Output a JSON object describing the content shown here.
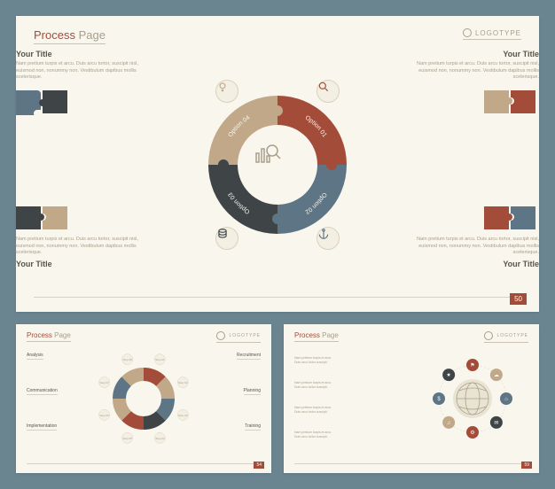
{
  "colors": {
    "bg": "#6b8590",
    "slide_bg": "#f9f6ee",
    "accent_red": "#a44c3a",
    "accent_blue": "#5d7585",
    "accent_dark": "#3f4447",
    "accent_tan": "#c0a888",
    "muted_text": "#a89f8a",
    "title_text": "#5a5548",
    "divider": "#d8d1be"
  },
  "main": {
    "header_title_a": "Process",
    "header_title_b": "Page",
    "logotype": "LOGOTYPE",
    "page_number": "50",
    "lorem": "Nam pretium turpis et arcu. Duis arcu tortor, suscipit nisl, euismod non, nonummy non. Vestibulum dapibus mollis scelerisque.",
    "corners": [
      {
        "title": "Your Title"
      },
      {
        "title": "Your Title"
      },
      {
        "title": "Your Title"
      },
      {
        "title": "Your Title"
      }
    ],
    "puzzle_colors": [
      [
        "#5d7585",
        "#3f4447"
      ],
      [
        "#c0a888",
        "#a44c3a"
      ],
      [
        "#3f4447",
        "#c0a888"
      ],
      [
        "#a44c3a",
        "#5d7585"
      ]
    ],
    "segments": [
      {
        "label": "Option 01",
        "color": "#a44c3a",
        "icon": "search"
      },
      {
        "label": "Option 02",
        "color": "#5d7585",
        "icon": "anchor"
      },
      {
        "label": "Option 03",
        "color": "#3f4447",
        "icon": "database"
      },
      {
        "label": "Option 04",
        "color": "#c0a888",
        "icon": "bulb"
      }
    ],
    "center_icon": "chart-search"
  },
  "thumb_left": {
    "header_title_a": "Process",
    "header_title_b": "Page",
    "logotype": "LOGOTYPE",
    "page_number": "54",
    "segment_colors": [
      "#a44c3a",
      "#c0a888",
      "#5d7585",
      "#3f4447",
      "#a44c3a",
      "#c0a888",
      "#5d7585",
      "#c0a888"
    ],
    "steps": [
      "Step 01",
      "Step 02",
      "Step 03",
      "Step 04",
      "Step 05",
      "Step 06",
      "Step 07",
      "Step 08"
    ],
    "side_labels": [
      "Analysis",
      "Communication",
      "Implementation",
      "Recruitment",
      "Planning",
      "Training"
    ]
  },
  "thumb_right": {
    "header_title_a": "Process",
    "header_title_b": "Page",
    "logotype": "LOGOTYPE",
    "page_number": "59",
    "center_icon": "globe",
    "node_colors": [
      "#a44c3a",
      "#c0a888",
      "#5d7585",
      "#3f4447",
      "#a44c3a",
      "#c0a888",
      "#5d7585",
      "#3f4447"
    ],
    "side_texts_count": 4
  }
}
